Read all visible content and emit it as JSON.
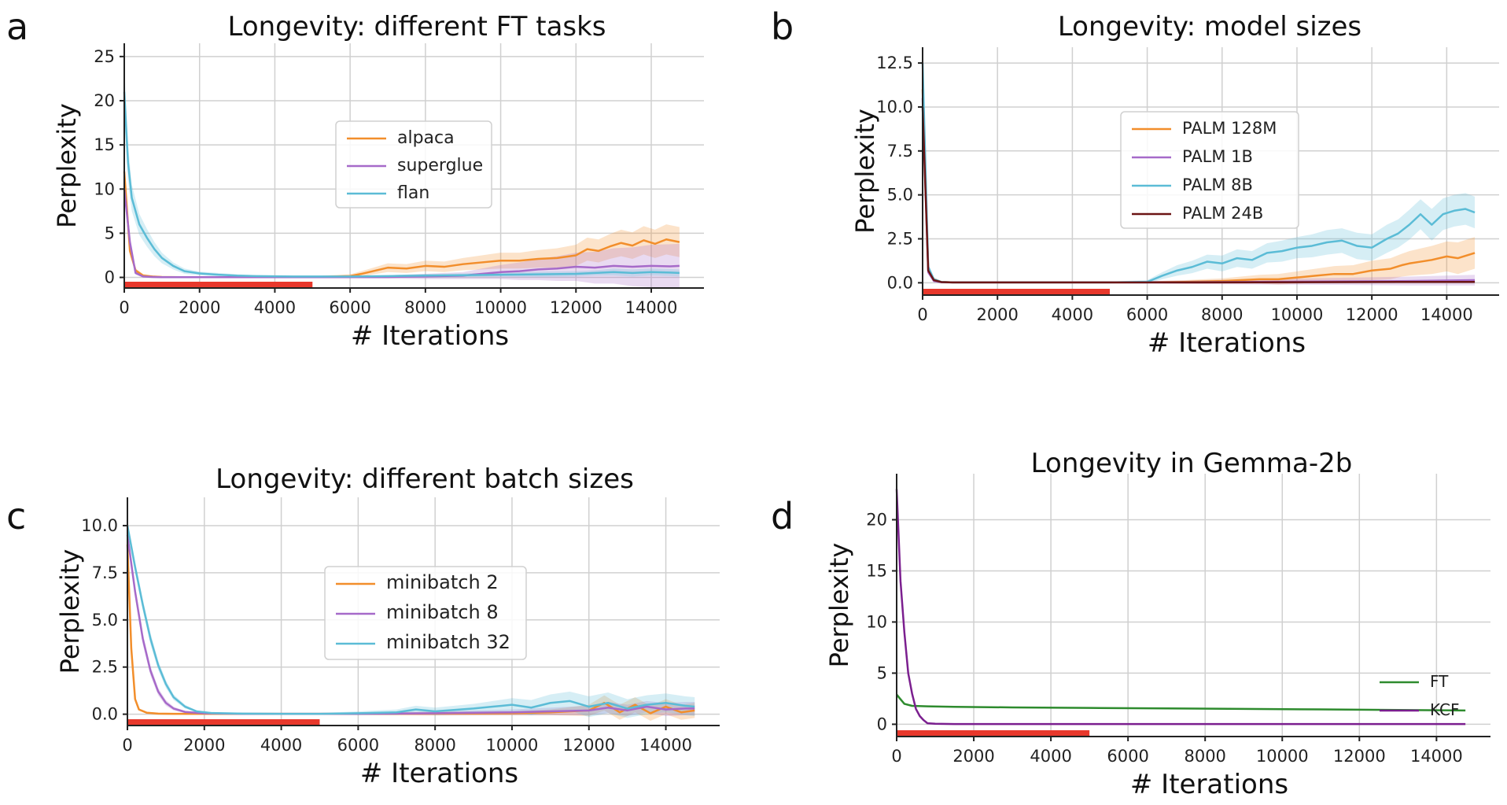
{
  "chart_data": [
    {
      "id": "a",
      "type": "line",
      "panel_label": "a",
      "title": "Longevity: different FT tasks",
      "xlabel": "# Iterations",
      "ylabel": "Perplexity",
      "xlim": [
        0,
        15400
      ],
      "ylim": [
        -1.2,
        26.5
      ],
      "x_ticks": [
        0,
        2000,
        4000,
        6000,
        8000,
        10000,
        12000,
        14000
      ],
      "y_ticks": [
        0,
        5,
        10,
        15,
        20,
        25
      ],
      "y_tick_labels": [
        "0",
        "5",
        "10",
        "15",
        "20",
        "25"
      ],
      "grid": true,
      "legend_position": "center",
      "highlight_range": [
        0,
        5000
      ],
      "series": [
        {
          "name": "alpaca",
          "color": "#f28e2b",
          "x": [
            0,
            150,
            300,
            500,
            750,
            1000,
            1500,
            2000,
            3000,
            4000,
            5000,
            6000,
            6300,
            6700,
            7000,
            7500,
            8000,
            8500,
            9000,
            9500,
            10000,
            10500,
            11000,
            11500,
            12000,
            12300,
            12600,
            12900,
            13200,
            13500,
            13800,
            14100,
            14400,
            14750
          ],
          "y": [
            12,
            3,
            0.8,
            0.2,
            0.1,
            0.05,
            0.02,
            0.02,
            0.02,
            0.02,
            0.05,
            0.15,
            0.4,
            0.8,
            1.1,
            1.0,
            1.3,
            1.2,
            1.5,
            1.7,
            1.9,
            1.9,
            2.1,
            2.2,
            2.5,
            3.2,
            3.0,
            3.5,
            3.9,
            3.6,
            4.2,
            3.8,
            4.3,
            4.0
          ],
          "band": [
            0.2,
            0.2,
            0.2,
            0.2,
            0.1,
            0.1,
            0.1,
            0.1,
            0.1,
            0.1,
            0.1,
            0.2,
            0.3,
            0.4,
            0.5,
            0.5,
            0.6,
            0.6,
            0.7,
            0.8,
            0.9,
            0.9,
            1.0,
            1.1,
            1.2,
            1.3,
            1.3,
            1.4,
            1.5,
            1.5,
            1.6,
            1.6,
            1.7,
            1.7
          ]
        },
        {
          "name": "superglue",
          "color": "#a66ac9",
          "x": [
            0,
            150,
            300,
            500,
            750,
            1000,
            1500,
            2000,
            3000,
            4000,
            5000,
            6000,
            7000,
            8000,
            9000,
            9500,
            10000,
            10500,
            11000,
            11500,
            12000,
            12500,
            13000,
            13500,
            14000,
            14500,
            14750
          ],
          "y": [
            10,
            4,
            0.5,
            0.1,
            0.05,
            0.02,
            0.02,
            0.02,
            0.02,
            0.02,
            0.02,
            0.02,
            0.05,
            0.1,
            0.2,
            0.4,
            0.6,
            0.7,
            0.9,
            1.0,
            1.2,
            1.1,
            1.3,
            1.2,
            1.3,
            1.25,
            1.3
          ],
          "band": [
            0.2,
            0.2,
            0.2,
            0.1,
            0.1,
            0.1,
            0.1,
            0.1,
            0.1,
            0.1,
            0.1,
            0.1,
            0.2,
            0.3,
            0.4,
            0.6,
            0.8,
            1.0,
            1.2,
            1.4,
            1.6,
            1.8,
            2.0,
            2.2,
            2.4,
            2.5,
            2.5
          ]
        },
        {
          "name": "flan",
          "color": "#5bbcd6",
          "x": [
            0,
            100,
            200,
            400,
            600,
            800,
            1000,
            1300,
            1600,
            2000,
            2500,
            3000,
            3500,
            4000,
            4500,
            5000,
            6000,
            7000,
            8000,
            9000,
            10000,
            11000,
            12000,
            12500,
            13000,
            13500,
            14000,
            14500,
            14750
          ],
          "y": [
            21,
            13,
            9,
            6,
            4.5,
            3.2,
            2.2,
            1.3,
            0.7,
            0.45,
            0.3,
            0.2,
            0.15,
            0.12,
            0.1,
            0.1,
            0.1,
            0.15,
            0.2,
            0.25,
            0.3,
            0.35,
            0.4,
            0.5,
            0.6,
            0.5,
            0.6,
            0.55,
            0.5
          ],
          "band": [
            3,
            2,
            1.5,
            1.2,
            1,
            0.8,
            0.6,
            0.4,
            0.3,
            0.2,
            0.2,
            0.15,
            0.1,
            0.1,
            0.1,
            0.1,
            0.1,
            0.1,
            0.2,
            0.2,
            0.2,
            0.3,
            0.3,
            0.3,
            0.4,
            0.4,
            0.4,
            0.4,
            0.4
          ]
        }
      ]
    },
    {
      "id": "b",
      "type": "line",
      "panel_label": "b",
      "title": "Longevity: model sizes",
      "xlabel": "# Iterations",
      "ylabel": "Perplexity",
      "xlim": [
        0,
        15400
      ],
      "ylim": [
        -0.7,
        13.4
      ],
      "x_ticks": [
        0,
        2000,
        4000,
        6000,
        8000,
        10000,
        12000,
        14000
      ],
      "y_ticks": [
        0,
        2.5,
        5,
        7.5,
        10,
        12.5
      ],
      "y_tick_labels": [
        "0.0",
        "2.5",
        "5.0",
        "7.5",
        "10.0",
        "12.5"
      ],
      "grid": true,
      "legend_position": "center",
      "highlight_range": [
        0,
        5000
      ],
      "series": [
        {
          "name": "PALM 128M",
          "color": "#f28e2b",
          "x": [
            0,
            150,
            300,
            500,
            800,
            1200,
            2000,
            3000,
            4000,
            5000,
            6000,
            7000,
            8000,
            8500,
            9000,
            9500,
            10000,
            10500,
            11000,
            11500,
            12000,
            12500,
            12800,
            13000,
            13300,
            13600,
            14000,
            14300,
            14750
          ],
          "y": [
            11,
            0.8,
            0.2,
            0.05,
            0.02,
            0.02,
            0.02,
            0.02,
            0.02,
            0.02,
            0.03,
            0.05,
            0.1,
            0.15,
            0.2,
            0.2,
            0.3,
            0.4,
            0.5,
            0.5,
            0.7,
            0.8,
            1.0,
            1.1,
            1.2,
            1.3,
            1.5,
            1.4,
            1.7
          ],
          "band": [
            0.2,
            0.2,
            0.1,
            0.05,
            0.05,
            0.05,
            0.05,
            0.05,
            0.05,
            0.05,
            0.05,
            0.1,
            0.15,
            0.2,
            0.25,
            0.3,
            0.35,
            0.4,
            0.45,
            0.5,
            0.55,
            0.6,
            0.65,
            0.7,
            0.75,
            0.8,
            0.85,
            0.9,
            0.9
          ]
        },
        {
          "name": "PALM 1B",
          "color": "#a66ac9",
          "x": [
            0,
            150,
            300,
            500,
            800,
            1500,
            3000,
            5000,
            7000,
            9000,
            11000,
            13000,
            14750
          ],
          "y": [
            10.5,
            0.6,
            0.1,
            0.03,
            0.02,
            0.02,
            0.02,
            0.02,
            0.03,
            0.05,
            0.08,
            0.1,
            0.15
          ],
          "band": [
            0.1,
            0.1,
            0.05,
            0.05,
            0.05,
            0.05,
            0.05,
            0.05,
            0.1,
            0.15,
            0.2,
            0.25,
            0.3
          ]
        },
        {
          "name": "PALM 8B",
          "color": "#5bbcd6",
          "x": [
            0,
            150,
            300,
            500,
            800,
            1500,
            3000,
            5000,
            6000,
            6400,
            6800,
            7200,
            7600,
            8000,
            8400,
            8800,
            9200,
            9600,
            10000,
            10400,
            10800,
            11200,
            11600,
            12000,
            12400,
            12700,
            13000,
            13300,
            13600,
            13900,
            14200,
            14500,
            14750
          ],
          "y": [
            12.5,
            0.9,
            0.2,
            0.05,
            0.02,
            0.02,
            0.02,
            0.02,
            0.05,
            0.4,
            0.7,
            0.9,
            1.2,
            1.1,
            1.4,
            1.3,
            1.7,
            1.8,
            2.0,
            2.1,
            2.3,
            2.4,
            2.1,
            2.0,
            2.5,
            2.8,
            3.3,
            3.9,
            3.3,
            3.9,
            4.1,
            4.2,
            4.0
          ],
          "band": [
            0.3,
            0.2,
            0.1,
            0.05,
            0.05,
            0.05,
            0.05,
            0.05,
            0.1,
            0.2,
            0.3,
            0.35,
            0.4,
            0.45,
            0.5,
            0.5,
            0.55,
            0.6,
            0.6,
            0.65,
            0.7,
            0.7,
            0.75,
            0.75,
            0.8,
            0.8,
            0.85,
            0.85,
            0.9,
            0.9,
            0.9,
            0.9,
            0.9
          ]
        },
        {
          "name": "PALM 24B",
          "color": "#6b1414",
          "x": [
            0,
            150,
            300,
            500,
            800,
            1500,
            3000,
            5000,
            7000,
            9000,
            11000,
            13000,
            14750
          ],
          "y": [
            10,
            0.7,
            0.15,
            0.04,
            0.02,
            0.02,
            0.02,
            0.02,
            0.02,
            0.03,
            0.04,
            0.05,
            0.05
          ],
          "band": [
            0.1,
            0.1,
            0.05,
            0.05,
            0.05,
            0.05,
            0.05,
            0.05,
            0.05,
            0.05,
            0.05,
            0.05,
            0.05
          ]
        }
      ]
    },
    {
      "id": "c",
      "type": "line",
      "panel_label": "c",
      "title": "Longevity: different batch sizes",
      "xlabel": "# Iterations",
      "ylabel": "Perplexity",
      "xlim": [
        0,
        15400
      ],
      "ylim": [
        -0.6,
        11.5
      ],
      "x_ticks": [
        0,
        2000,
        4000,
        6000,
        8000,
        10000,
        12000,
        14000
      ],
      "y_ticks": [
        0,
        2.5,
        5,
        7.5,
        10
      ],
      "y_tick_labels": [
        "0.0",
        "2.5",
        "5.0",
        "7.5",
        "10.0"
      ],
      "grid": true,
      "legend_position": "center",
      "highlight_range": [
        0,
        5000
      ],
      "series": [
        {
          "name": "minibatch 2",
          "color": "#f28e2b",
          "x": [
            0,
            100,
            200,
            300,
            500,
            800,
            1200,
            2000,
            4000,
            6000,
            8000,
            10000,
            11000,
            12000,
            12400,
            12800,
            13200,
            13600,
            14000,
            14400,
            14750
          ],
          "y": [
            9,
            3.5,
            0.8,
            0.25,
            0.08,
            0.03,
            0.02,
            0.02,
            0.02,
            0.02,
            0.03,
            0.05,
            0.1,
            0.2,
            0.6,
            0.1,
            0.5,
            0.05,
            0.4,
            0.1,
            0.2
          ],
          "band": [
            0.2,
            0.2,
            0.1,
            0.05,
            0.05,
            0.05,
            0.05,
            0.05,
            0.05,
            0.05,
            0.1,
            0.1,
            0.15,
            0.3,
            0.4,
            0.4,
            0.4,
            0.4,
            0.4,
            0.4,
            0.4
          ]
        },
        {
          "name": "minibatch 8",
          "color": "#a66ac9",
          "x": [
            0,
            200,
            400,
            600,
            800,
            1000,
            1200,
            1500,
            2000,
            3000,
            4000,
            6000,
            8000,
            10000,
            11000,
            12000,
            12500,
            13000,
            13500,
            14000,
            14500,
            14750
          ],
          "y": [
            9.5,
            6.5,
            4,
            2.3,
            1.2,
            0.6,
            0.3,
            0.12,
            0.05,
            0.02,
            0.02,
            0.02,
            0.05,
            0.1,
            0.15,
            0.2,
            0.35,
            0.2,
            0.4,
            0.25,
            0.3,
            0.3
          ],
          "band": [
            0.3,
            0.3,
            0.3,
            0.25,
            0.2,
            0.15,
            0.1,
            0.05,
            0.05,
            0.05,
            0.05,
            0.05,
            0.1,
            0.15,
            0.2,
            0.25,
            0.3,
            0.3,
            0.3,
            0.35,
            0.35,
            0.35
          ]
        },
        {
          "name": "minibatch 32",
          "color": "#5bbcd6",
          "x": [
            0,
            200,
            400,
            600,
            800,
            1000,
            1200,
            1500,
            1800,
            2200,
            3000,
            4000,
            5000,
            6000,
            7000,
            7500,
            8000,
            9000,
            9500,
            10000,
            10500,
            11000,
            11500,
            12000,
            12500,
            13000,
            13500,
            14000,
            14500,
            14750
          ],
          "y": [
            10,
            7.8,
            5.8,
            4,
            2.6,
            1.6,
            0.9,
            0.4,
            0.15,
            0.06,
            0.03,
            0.02,
            0.02,
            0.05,
            0.1,
            0.25,
            0.15,
            0.3,
            0.4,
            0.5,
            0.35,
            0.6,
            0.7,
            0.4,
            0.6,
            0.3,
            0.5,
            0.6,
            0.45,
            0.4
          ],
          "band": [
            0.3,
            0.3,
            0.3,
            0.3,
            0.25,
            0.2,
            0.15,
            0.1,
            0.05,
            0.05,
            0.05,
            0.05,
            0.05,
            0.1,
            0.15,
            0.2,
            0.2,
            0.25,
            0.3,
            0.35,
            0.4,
            0.45,
            0.5,
            0.55,
            0.55,
            0.5,
            0.5,
            0.5,
            0.5,
            0.5
          ]
        }
      ]
    },
    {
      "id": "d",
      "type": "line",
      "panel_label": "d",
      "title": "Longevity in Gemma-2b",
      "xlabel": "# Iterations",
      "ylabel": "Perplexity",
      "xlim": [
        0,
        15400
      ],
      "ylim": [
        -1.2,
        24.5
      ],
      "x_ticks": [
        0,
        2000,
        4000,
        6000,
        8000,
        10000,
        12000,
        14000
      ],
      "y_ticks": [
        0,
        5,
        10,
        15,
        20
      ],
      "y_tick_labels": [
        "0",
        "5",
        "10",
        "15",
        "20"
      ],
      "grid": true,
      "legend_position": "lower right",
      "highlight_range": [
        0,
        5000
      ],
      "series": [
        {
          "name": "FT",
          "color": "#2e8b2e",
          "x": [
            0,
            200,
            400,
            800,
            1500,
            3000,
            5000,
            7000,
            9000,
            11000,
            13000,
            14750
          ],
          "y": [
            2.9,
            2.0,
            1.8,
            1.75,
            1.7,
            1.65,
            1.6,
            1.55,
            1.5,
            1.45,
            1.4,
            1.35
          ],
          "band": [
            0.2,
            0.1,
            0.05,
            0.05,
            0.05,
            0.05,
            0.05,
            0.05,
            0.05,
            0.05,
            0.05,
            0.05
          ]
        },
        {
          "name": "KCF",
          "color": "#7b1f8f",
          "x": [
            0,
            100,
            200,
            300,
            400,
            500,
            600,
            700,
            800,
            1000,
            1500,
            3000,
            6000,
            10000,
            14750
          ],
          "y": [
            23,
            14,
            9,
            5,
            3,
            1.5,
            0.8,
            0.4,
            0.1,
            0.05,
            0.02,
            0.02,
            0.02,
            0.02,
            0.02
          ],
          "band": [
            0.5,
            0.4,
            0.3,
            0.2,
            0.15,
            0.1,
            0.05,
            0.05,
            0.05,
            0.05,
            0.05,
            0.05,
            0.05,
            0.05,
            0.05
          ]
        }
      ]
    }
  ]
}
